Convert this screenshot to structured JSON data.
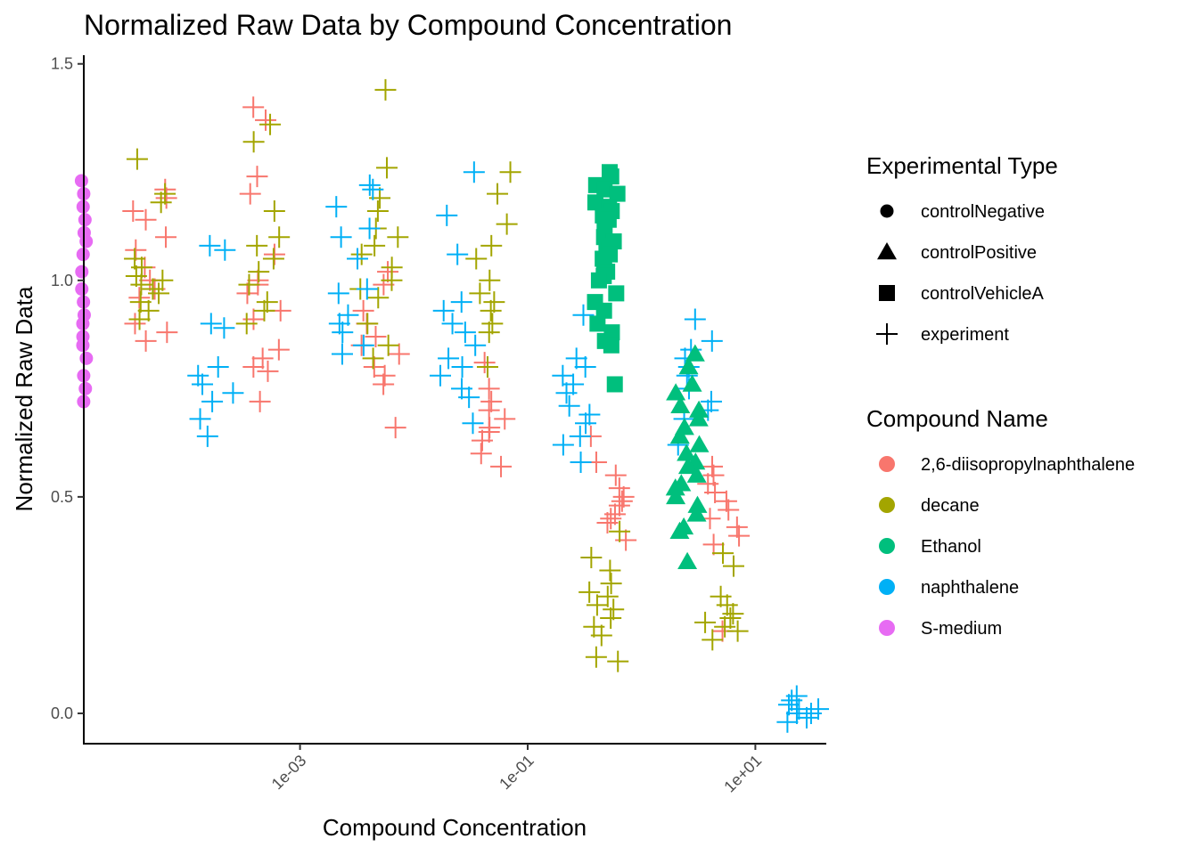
{
  "chart_data": {
    "type": "scatter",
    "title": "Normalized Raw Data by Compound Concentration",
    "xlabel": "Compound Concentration",
    "ylabel": "Normalized Raw Data",
    "xscale": "log10",
    "xlim": [
      1.26e-05,
      42
    ],
    "ylim": [
      -0.07,
      1.52
    ],
    "x_ticks": [
      {
        "value": 0.001,
        "label": "1e-03"
      },
      {
        "value": 0.1,
        "label": "1e-01"
      },
      {
        "value": 10,
        "label": "1e+01"
      }
    ],
    "y_ticks": [
      {
        "value": 0.0,
        "label": "0.0"
      },
      {
        "value": 0.5,
        "label": "0.5"
      },
      {
        "value": 1.0,
        "label": "1.0"
      },
      {
        "value": 1.5,
        "label": "1.5"
      }
    ],
    "grid": false,
    "legend_position": "right",
    "legends": [
      {
        "title": "Experimental Type",
        "items": [
          {
            "label": "controlNegative",
            "shape": "circle"
          },
          {
            "label": "controlPositive",
            "shape": "triangle"
          },
          {
            "label": "controlVehicleA",
            "shape": "square"
          },
          {
            "label": "experiment",
            "shape": "plus"
          }
        ]
      },
      {
        "title": "Compound Name",
        "items": [
          {
            "label": "2,6-diisopropylnaphthalene",
            "color": "#F8766D"
          },
          {
            "label": "decane",
            "color": "#A3A500"
          },
          {
            "label": "Ethanol",
            "color": "#00BF7D"
          },
          {
            "label": "naphthalene",
            "color": "#00B0F6"
          },
          {
            "label": "S-medium",
            "color": "#E76BF3"
          }
        ]
      }
    ],
    "series": [
      {
        "compound": "S-medium",
        "type": "controlNegative",
        "color": "#E76BF3",
        "shape": "circle",
        "x": 1.26e-05,
        "y": [
          1.23,
          1.2,
          1.17,
          1.14,
          1.11,
          1.09,
          1.06,
          1.02,
          0.98,
          0.95,
          0.92,
          0.9,
          0.87,
          0.85,
          0.82,
          0.78,
          0.75,
          0.72
        ]
      },
      {
        "compound": "Ethanol",
        "type": "controlVehicleA",
        "color": "#00BF7D",
        "shape": "square",
        "x": 0.5,
        "y": [
          1.25,
          1.24,
          1.22,
          1.21,
          1.2,
          1.18,
          1.17,
          1.16,
          1.15,
          1.14,
          1.12,
          1.1,
          1.09,
          1.08,
          1.07,
          1.06,
          1.05,
          1.03,
          1.02,
          1.01,
          1.0,
          0.97,
          0.95,
          0.93,
          0.9,
          0.88,
          0.86,
          0.85,
          0.76
        ]
      },
      {
        "compound": "Ethanol",
        "type": "controlPositive",
        "color": "#00BF7D",
        "shape": "triangle",
        "x": 2.5,
        "y": [
          0.83,
          0.8,
          0.76,
          0.74,
          0.71,
          0.7,
          0.68,
          0.66,
          0.64,
          0.62,
          0.6,
          0.58,
          0.57,
          0.55,
          0.53,
          0.52,
          0.5,
          0.48,
          0.46,
          0.43,
          0.42,
          0.35
        ]
      },
      {
        "compound": "2,6-diisopropylnaphthalene",
        "type": "experiment",
        "color": "#F8766D",
        "shape": "plus",
        "groups": [
          {
            "x": 4.8e-05,
            "y": [
              1.21,
              1.19,
              1.16,
              1.14,
              1.1,
              1.07,
              1.03,
              1.0,
              0.98,
              0.96,
              0.9,
              0.88,
              0.86
            ]
          },
          {
            "x": 0.0005,
            "y": [
              1.4,
              1.37,
              1.24,
              1.2,
              1.06,
              1.0,
              0.99,
              0.97,
              0.93,
              0.91,
              0.84,
              0.82,
              0.8,
              0.79,
              0.72
            ]
          },
          {
            "x": 0.005,
            "y": [
              1.02,
              0.99,
              0.93,
              0.9,
              0.87,
              0.85,
              0.83,
              0.8,
              0.78,
              0.76,
              0.66
            ]
          },
          {
            "x": 0.05,
            "y": [
              0.81,
              0.75,
              0.72,
              0.7,
              0.68,
              0.66,
              0.65,
              0.63,
              0.6,
              0.57
            ]
          },
          {
            "x": 0.5,
            "y": [
              0.64,
              0.58,
              0.55,
              0.52,
              0.5,
              0.49,
              0.48,
              0.46,
              0.45,
              0.44,
              0.4
            ]
          },
          {
            "x": 5,
            "y": [
              0.57,
              0.55,
              0.53,
              0.51,
              0.49,
              0.47,
              0.45,
              0.43,
              0.41,
              0.39,
              0.19
            ]
          }
        ]
      },
      {
        "compound": "decane",
        "type": "experiment",
        "color": "#A3A500",
        "shape": "plus",
        "groups": [
          {
            "x": 5e-05,
            "y": [
              1.28,
              1.2,
              1.18,
              1.05,
              1.03,
              1.01,
              1.0,
              0.99,
              0.98,
              0.97,
              0.95,
              0.93,
              0.91
            ]
          },
          {
            "x": 0.0005,
            "y": [
              1.36,
              1.32,
              1.16,
              1.1,
              1.08,
              1.05,
              1.02,
              0.99,
              0.95,
              0.93,
              0.9
            ]
          },
          {
            "x": 0.005,
            "y": [
              1.44,
              1.26,
              1.19,
              1.16,
              1.12,
              1.1,
              1.08,
              1.06,
              1.03,
              1.0,
              0.98,
              0.96,
              0.9,
              0.85,
              0.82
            ]
          },
          {
            "x": 0.05,
            "y": [
              1.25,
              1.2,
              1.13,
              1.08,
              1.05,
              1.0,
              0.97,
              0.95,
              0.93,
              0.9,
              0.88,
              0.8
            ]
          },
          {
            "x": 0.5,
            "y": [
              0.42,
              0.36,
              0.33,
              0.3,
              0.28,
              0.27,
              0.25,
              0.24,
              0.22,
              0.2,
              0.18,
              0.13,
              0.12
            ]
          },
          {
            "x": 5,
            "y": [
              0.37,
              0.34,
              0.27,
              0.25,
              0.23,
              0.22,
              0.21,
              0.2,
              0.19,
              0.17
            ]
          }
        ]
      },
      {
        "compound": "naphthalene",
        "type": "experiment",
        "color": "#00B0F6",
        "shape": "plus",
        "groups": [
          {
            "x": 0.00018,
            "y": [
              1.08,
              1.07,
              0.9,
              0.89,
              0.8,
              0.78,
              0.76,
              0.74,
              0.72,
              0.68,
              0.64
            ]
          },
          {
            "x": 0.003,
            "y": [
              1.22,
              1.21,
              1.17,
              1.12,
              1.1,
              1.05,
              0.98,
              0.97,
              0.92,
              0.9,
              0.88,
              0.85,
              0.83
            ]
          },
          {
            "x": 0.025,
            "y": [
              1.25,
              1.15,
              1.06,
              0.95,
              0.93,
              0.9,
              0.88,
              0.85,
              0.82,
              0.8,
              0.78,
              0.75,
              0.73,
              0.67
            ]
          },
          {
            "x": 0.25,
            "y": [
              0.92,
              0.82,
              0.8,
              0.78,
              0.76,
              0.74,
              0.71,
              0.69,
              0.67,
              0.64,
              0.62,
              0.58
            ]
          },
          {
            "x": 3,
            "y": [
              0.91,
              0.86,
              0.84,
              0.82,
              0.8,
              0.78,
              0.75,
              0.72,
              0.7,
              0.68,
              0.62
            ]
          },
          {
            "x": 25,
            "y": [
              0.04,
              0.03,
              0.02,
              0.01,
              0.01,
              0.0,
              0.0,
              -0.01,
              -0.02
            ]
          }
        ]
      }
    ]
  }
}
